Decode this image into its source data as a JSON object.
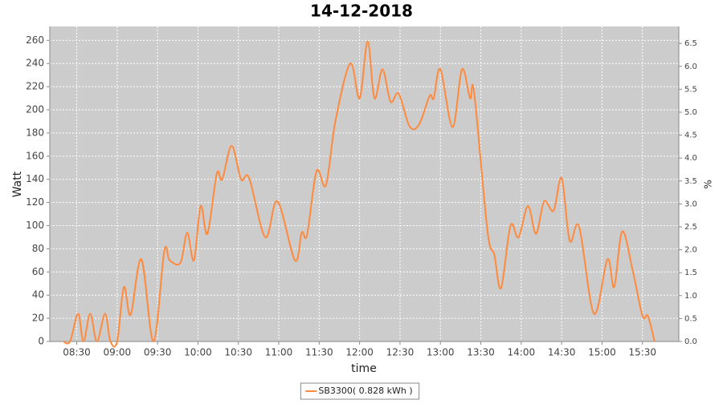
{
  "chart_data": {
    "type": "line",
    "title": "14-12-2018",
    "x_label": "time",
    "y_label": "Watt",
    "y2_label": "%",
    "x": [
      "08:20",
      "08:25",
      "08:31",
      "08:35",
      "08:40",
      "08:45",
      "08:51",
      "08:55",
      "09:00",
      "09:05",
      "09:10",
      "09:18",
      "09:27",
      "09:35",
      "09:39",
      "09:47",
      "09:52",
      "09:57",
      "10:02",
      "10:07",
      "10:14",
      "10:18",
      "10:25",
      "10:32",
      "10:38",
      "10:50",
      "10:59",
      "11:12",
      "11:17",
      "11:21",
      "11:28",
      "11:35",
      "11:42",
      "11:53",
      "12:00",
      "12:06",
      "12:11",
      "12:17",
      "12:23",
      "12:29",
      "12:37",
      "12:44",
      "12:52",
      "12:55",
      "13:00",
      "13:09",
      "13:16",
      "13:22",
      "13:25",
      "13:35",
      "13:40",
      "13:45",
      "13:52",
      "13:58",
      "14:05",
      "14:11",
      "14:17",
      "14:24",
      "14:30",
      "14:36",
      "14:43",
      "14:54",
      "15:04",
      "15:09",
      "15:15",
      "15:23",
      "15:30",
      "15:34",
      "15:39"
    ],
    "series": [
      {
        "name": "SB3300( 0.828 kWh )",
        "color": "#ff8a3d",
        "values": [
          0,
          0,
          24,
          0,
          24,
          0,
          24,
          0,
          0,
          47,
          23,
          71,
          0,
          78,
          70,
          68,
          94,
          70,
          117,
          93,
          145,
          140,
          169,
          140,
          141,
          90,
          121,
          70,
          94,
          92,
          147,
          135,
          190,
          240,
          210,
          259,
          210,
          235,
          207,
          214,
          186,
          187,
          212,
          210,
          235,
          185,
          235,
          210,
          215,
          95,
          75,
          46,
          100,
          90,
          117,
          93,
          121,
          113,
          141,
          87,
          99,
          24,
          71,
          47,
          95,
          60,
          22,
          22,
          0
        ]
      }
    ],
    "xlim": [
      "08:10",
      "15:57"
    ],
    "xticks": [
      "08:30",
      "09:00",
      "09:30",
      "10:00",
      "10:30",
      "11:00",
      "11:30",
      "12:00",
      "12:30",
      "13:00",
      "13:30",
      "14:00",
      "14:30",
      "15:00",
      "15:30"
    ],
    "ylim": [
      0,
      272
    ],
    "yticks": [
      0,
      20,
      40,
      60,
      80,
      100,
      120,
      140,
      160,
      180,
      200,
      220,
      240,
      260
    ],
    "y2lim": [
      0,
      6.87
    ],
    "y2ticks": [
      {
        "value": 0,
        "label": "0.0"
      },
      0.5,
      {
        "value": 1,
        "label": "1.0"
      },
      1.5,
      {
        "value": 2,
        "label": "2.0"
      },
      2.5,
      {
        "value": 3,
        "label": "3.0"
      },
      3.5,
      {
        "value": 4,
        "label": "4.0"
      },
      4.5,
      {
        "value": 5,
        "label": "5.0"
      },
      5.5,
      {
        "value": 6,
        "label": "6.0"
      },
      6.5
    ],
    "grid": true,
    "legend": "bottom"
  }
}
